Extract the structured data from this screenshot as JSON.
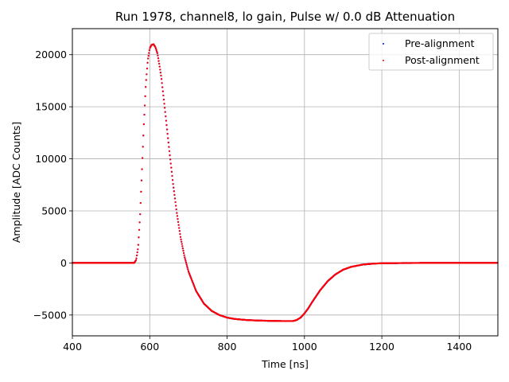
{
  "chart_data": {
    "type": "scatter",
    "title": "Run 1978, channel8, lo gain, Pulse w/ 0.0 dB Attenuation",
    "xlabel": "Time [ns]",
    "ylabel": "Amplitude [ADC Counts]",
    "xlim": [
      400,
      1500
    ],
    "ylim": [
      -7000,
      22500
    ],
    "xticks": [
      400,
      600,
      800,
      1000,
      1200,
      1400
    ],
    "yticks": [
      -5000,
      0,
      5000,
      10000,
      15000,
      20000
    ],
    "xtick_labels": [
      "400",
      "600",
      "800",
      "1000",
      "1200",
      "1400"
    ],
    "ytick_labels": [
      "−5000",
      "0",
      "5000",
      "10000",
      "15000",
      "20000"
    ],
    "grid": true,
    "legend_position": "top-right",
    "x_range": [
      400,
      1500
    ],
    "series": [
      {
        "name": "Pre-alignment",
        "color": "#0000ff",
        "marker": "dot",
        "x": [
          400,
          560,
          565,
          570,
          575,
          580,
          585,
          590,
          595,
          600,
          605,
          610,
          615,
          620,
          625,
          630,
          640,
          650,
          660,
          670,
          680,
          690,
          700,
          720,
          740,
          760,
          780,
          800,
          820,
          850,
          880,
          910,
          940,
          970,
          980,
          990,
          1000,
          1010,
          1020,
          1040,
          1060,
          1080,
          1100,
          1120,
          1150,
          1180,
          1200,
          1250,
          1300,
          1400,
          1500
        ],
        "y": [
          0,
          0,
          300,
          1500,
          4500,
          9000,
          13500,
          17200,
          19500,
          20600,
          20950,
          21000,
          20700,
          20100,
          19000,
          17800,
          14500,
          11000,
          7700,
          4800,
          2400,
          600,
          -800,
          -2700,
          -3900,
          -4600,
          -5000,
          -5250,
          -5380,
          -5480,
          -5530,
          -5560,
          -5580,
          -5580,
          -5480,
          -5250,
          -4850,
          -4350,
          -3750,
          -2650,
          -1750,
          -1100,
          -650,
          -380,
          -160,
          -60,
          -30,
          -10,
          0,
          0,
          0
        ]
      },
      {
        "name": "Post-alignment",
        "color": "#ff0000",
        "marker": "dot",
        "x": [
          400,
          560,
          565,
          570,
          575,
          580,
          585,
          590,
          595,
          600,
          605,
          610,
          615,
          620,
          625,
          630,
          640,
          650,
          660,
          670,
          680,
          690,
          700,
          720,
          740,
          760,
          780,
          800,
          820,
          850,
          880,
          910,
          940,
          970,
          980,
          990,
          1000,
          1010,
          1020,
          1040,
          1060,
          1080,
          1100,
          1120,
          1150,
          1180,
          1200,
          1250,
          1300,
          1400,
          1500
        ],
        "y": [
          0,
          0,
          300,
          1500,
          4500,
          9000,
          13500,
          17200,
          19500,
          20600,
          20950,
          21000,
          20700,
          20100,
          19000,
          17800,
          14500,
          11000,
          7700,
          4800,
          2400,
          600,
          -800,
          -2700,
          -3900,
          -4600,
          -5000,
          -5250,
          -5380,
          -5480,
          -5530,
          -5560,
          -5580,
          -5580,
          -5480,
          -5250,
          -4850,
          -4350,
          -3750,
          -2650,
          -1750,
          -1100,
          -650,
          -380,
          -160,
          -60,
          -30,
          -10,
          0,
          0,
          0
        ]
      }
    ]
  }
}
